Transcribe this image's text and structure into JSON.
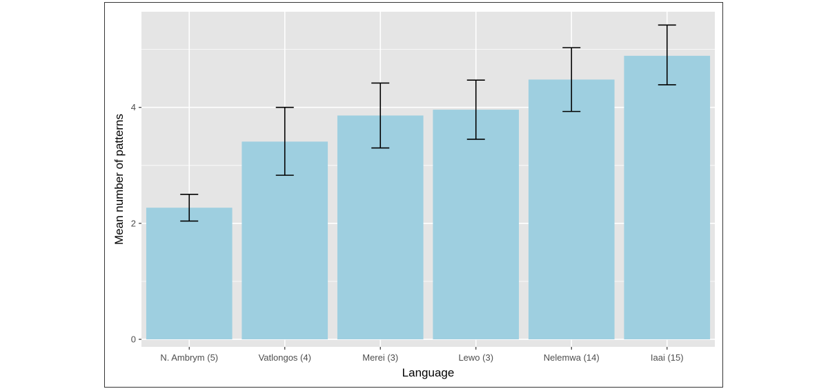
{
  "chart_data": {
    "type": "bar",
    "title": "",
    "xlabel": "Language",
    "ylabel": "Mean number of patterns",
    "categories": [
      "N. Ambrym (5)",
      "Vatlongos (4)",
      "Merei (3)",
      "Lewo (3)",
      "Nelemwa (14)",
      "Iaai (15)"
    ],
    "values": [
      2.27,
      3.41,
      3.86,
      3.96,
      4.48,
      4.89
    ],
    "error_low": [
      2.04,
      2.83,
      3.3,
      3.45,
      3.93,
      4.39
    ],
    "error_high": [
      2.5,
      4.0,
      4.42,
      4.47,
      5.03,
      5.42
    ],
    "ylim": [
      -0.13,
      5.65
    ],
    "yticks": [
      0,
      2,
      4
    ],
    "grid": true,
    "colors": {
      "bar": "#9ECFE0",
      "panel": "#E5E5E5",
      "grid_major": "#FFFFFF",
      "error_bar": "#000000"
    }
  }
}
